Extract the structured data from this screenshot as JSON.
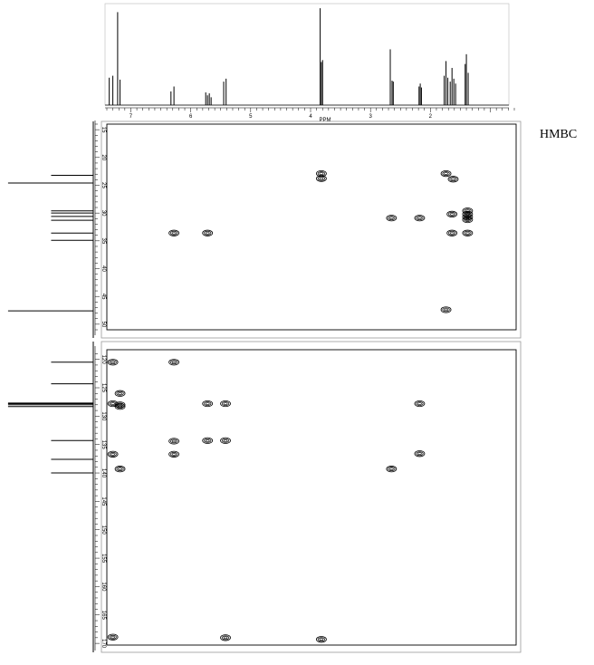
{
  "label": "HMBC",
  "chart_data": {
    "type": "scatter",
    "title": "",
    "f2": {
      "unit_label": "PPM",
      "ticks": [
        "7",
        "6",
        "5",
        "4",
        "3",
        "2"
      ],
      "range_ppm": [
        7.4,
        0.6
      ],
      "peaks_ppm": [
        {
          "x": 7.36,
          "h": 0.28
        },
        {
          "x": 7.3,
          "h": 0.3
        },
        {
          "x": 7.22,
          "h": 0.95
        },
        {
          "x": 7.18,
          "h": 0.26
        },
        {
          "x": 6.33,
          "h": 0.14
        },
        {
          "x": 6.28,
          "h": 0.19
        },
        {
          "x": 5.75,
          "h": 0.13
        },
        {
          "x": 5.72,
          "h": 0.1
        },
        {
          "x": 5.69,
          "h": 0.12
        },
        {
          "x": 5.66,
          "h": 0.08
        },
        {
          "x": 5.45,
          "h": 0.24
        },
        {
          "x": 5.41,
          "h": 0.27
        },
        {
          "x": 3.84,
          "h": 0.99
        },
        {
          "x": 3.82,
          "h": 0.44
        },
        {
          "x": 3.8,
          "h": 0.46
        },
        {
          "x": 2.67,
          "h": 0.57
        },
        {
          "x": 2.64,
          "h": 0.25
        },
        {
          "x": 2.62,
          "h": 0.24
        },
        {
          "x": 2.19,
          "h": 0.19
        },
        {
          "x": 2.17,
          "h": 0.22
        },
        {
          "x": 2.15,
          "h": 0.18
        },
        {
          "x": 1.77,
          "h": 0.3
        },
        {
          "x": 1.74,
          "h": 0.45
        },
        {
          "x": 1.71,
          "h": 0.28
        },
        {
          "x": 1.67,
          "h": 0.24
        },
        {
          "x": 1.64,
          "h": 0.38
        },
        {
          "x": 1.61,
          "h": 0.27
        },
        {
          "x": 1.58,
          "h": 0.22
        },
        {
          "x": 1.42,
          "h": 0.42
        },
        {
          "x": 1.4,
          "h": 0.52
        },
        {
          "x": 1.37,
          "h": 0.33
        }
      ]
    },
    "panels": [
      {
        "ticks": [
          "15",
          "20",
          "25",
          "30",
          "35",
          "40",
          "45",
          "50"
        ],
        "range_ppm": [
          14,
          51
        ],
        "f1_projection_ppm": [
          23.2,
          24.6,
          29.6,
          30.0,
          30.6,
          31.3,
          33.6,
          34.9,
          47.6
        ],
        "f1_projection_len": [
          0.48,
          0.97,
          0.48,
          0.48,
          0.48,
          0.48,
          0.48,
          0.48,
          0.97
        ],
        "cross_peaks": [
          {
            "x": 3.82,
            "y": 22.9
          },
          {
            "x": 3.82,
            "y": 23.8
          },
          {
            "x": 1.74,
            "y": 22.9
          },
          {
            "x": 1.62,
            "y": 23.9
          },
          {
            "x": 6.28,
            "y": 33.6
          },
          {
            "x": 5.72,
            "y": 33.6
          },
          {
            "x": 2.65,
            "y": 30.9
          },
          {
            "x": 2.18,
            "y": 30.9
          },
          {
            "x": 1.64,
            "y": 30.2
          },
          {
            "x": 1.64,
            "y": 33.6
          },
          {
            "x": 1.38,
            "y": 29.6
          },
          {
            "x": 1.38,
            "y": 30.2
          },
          {
            "x": 1.38,
            "y": 30.7
          },
          {
            "x": 1.38,
            "y": 31.2
          },
          {
            "x": 1.38,
            "y": 33.6
          },
          {
            "x": 1.74,
            "y": 47.4
          }
        ]
      },
      {
        "ticks": [
          "120",
          "125",
          "130",
          "135",
          "140",
          "145",
          "150",
          "155",
          "160",
          "165",
          "170"
        ],
        "range_ppm": [
          118.3,
          170.3
        ],
        "f1_projection_ppm": [
          120.5,
          124.3,
          127.7,
          127.8,
          128.0,
          128.3,
          134.3,
          137.6,
          140.0
        ],
        "f1_projection_len": [
          0.48,
          0.48,
          0.97,
          0.97,
          0.97,
          0.97,
          0.48,
          0.48,
          0.48
        ],
        "cross_peaks": [
          {
            "x": 7.3,
            "y": 120.5
          },
          {
            "x": 6.28,
            "y": 120.5
          },
          {
            "x": 7.18,
            "y": 126.0
          },
          {
            "x": 7.3,
            "y": 127.8
          },
          {
            "x": 7.18,
            "y": 128.0
          },
          {
            "x": 7.18,
            "y": 128.3
          },
          {
            "x": 5.72,
            "y": 127.8
          },
          {
            "x": 5.42,
            "y": 127.8
          },
          {
            "x": 2.18,
            "y": 127.8
          },
          {
            "x": 6.28,
            "y": 134.4
          },
          {
            "x": 5.72,
            "y": 134.3
          },
          {
            "x": 5.42,
            "y": 134.3
          },
          {
            "x": 7.3,
            "y": 136.7
          },
          {
            "x": 6.28,
            "y": 136.7
          },
          {
            "x": 2.18,
            "y": 136.6
          },
          {
            "x": 7.18,
            "y": 139.3
          },
          {
            "x": 2.65,
            "y": 139.3
          },
          {
            "x": 7.3,
            "y": 168.9
          },
          {
            "x": 5.42,
            "y": 169.0
          },
          {
            "x": 3.82,
            "y": 169.3
          }
        ]
      }
    ]
  }
}
